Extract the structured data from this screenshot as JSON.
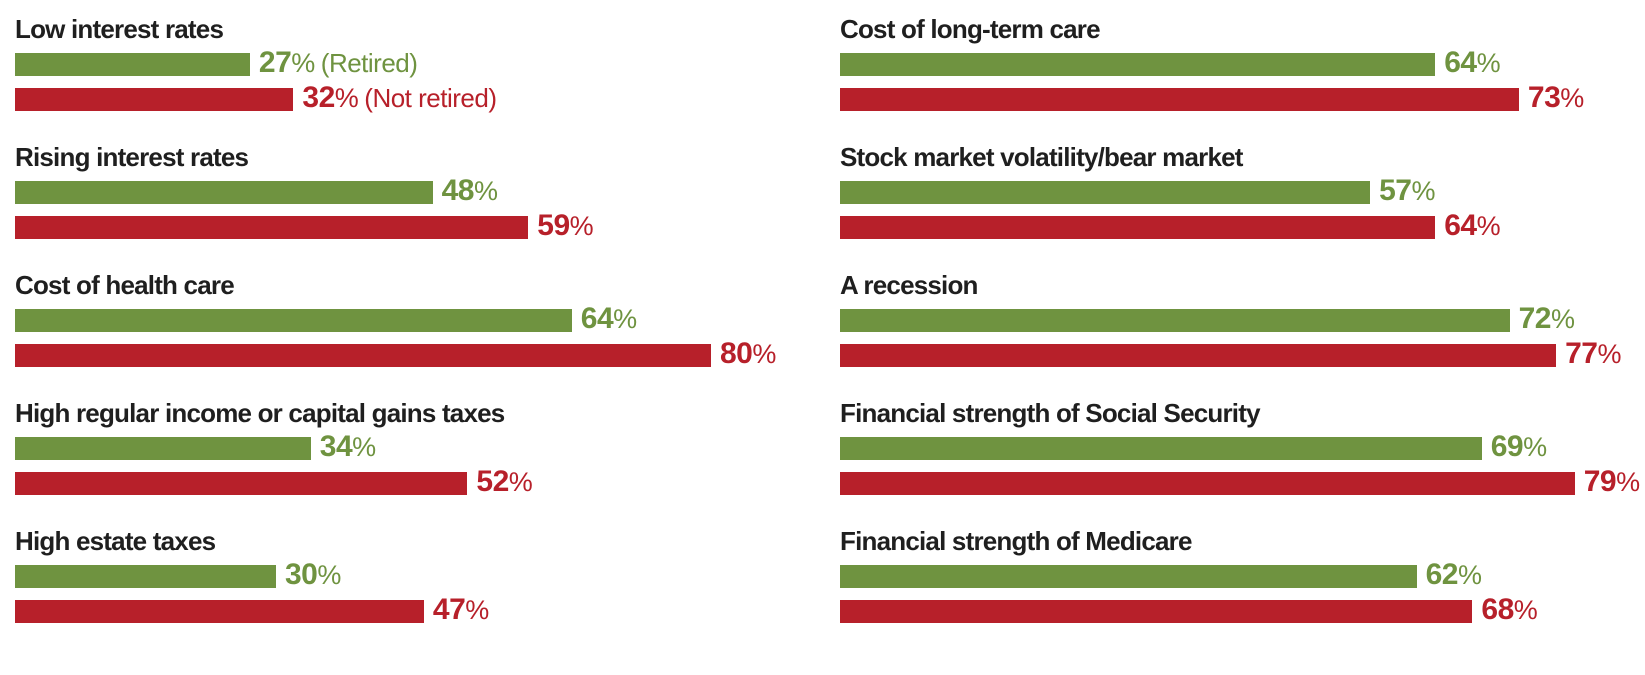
{
  "colors": {
    "retired_green": "#6f9340",
    "not_retired_red": "#b7202a",
    "title_text": "#1f1f1f",
    "background": "#ffffff"
  },
  "legend": {
    "retired_label": "(Retired)",
    "not_retired_label": "(Not retired)"
  },
  "chart_data": {
    "type": "bar",
    "orientation": "horizontal",
    "unit": "%",
    "grid": false,
    "xlim": [
      0,
      100
    ],
    "legend_position": "inline-after-first-pair-of-bars",
    "categories": [
      "Low interest rates",
      "Rising interest rates",
      "Cost of health care",
      "High regular income or capital gains taxes",
      "High estate taxes",
      "Cost of long-term care",
      "Stock market volatility/bear market",
      "A recession",
      "Financial strength of Social Security",
      "Financial strength of Medicare"
    ],
    "series": [
      {
        "name": "Retired",
        "color": "#6f9340",
        "values": [
          27,
          48,
          64,
          34,
          30,
          64,
          57,
          72,
          69,
          62
        ]
      },
      {
        "name": "Not retired",
        "color": "#b7202a",
        "values": [
          32,
          59,
          80,
          52,
          47,
          73,
          64,
          77,
          79,
          68
        ]
      }
    ],
    "columns": [
      {
        "category_indices": [
          0,
          1,
          2,
          3,
          4
        ]
      },
      {
        "category_indices": [
          5,
          6,
          7,
          8,
          9
        ]
      }
    ]
  }
}
